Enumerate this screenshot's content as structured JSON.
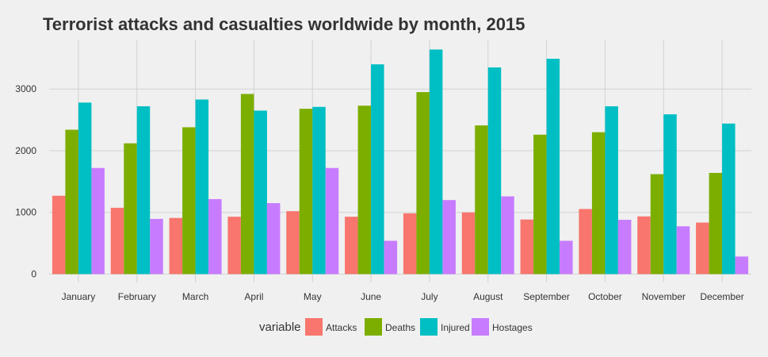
{
  "chart_data": {
    "type": "bar",
    "title": "Terrorist attacks and casualties worldwide by month, 2015",
    "xlabel": "",
    "ylabel": "",
    "categories": [
      "January",
      "February",
      "March",
      "April",
      "May",
      "June",
      "July",
      "August",
      "September",
      "October",
      "November",
      "December"
    ],
    "series": [
      {
        "name": "Attacks",
        "color": "#F8766D",
        "values": [
          1270,
          1075,
          910,
          930,
          1020,
          930,
          985,
          1000,
          885,
          1055,
          935,
          835
        ]
      },
      {
        "name": "Deaths",
        "color": "#7CAE00",
        "values": [
          2340,
          2120,
          2380,
          2920,
          2680,
          2730,
          2950,
          2410,
          2260,
          2300,
          1620,
          1640
        ]
      },
      {
        "name": "Injured",
        "color": "#00BFC4",
        "values": [
          2780,
          2720,
          2830,
          2650,
          2710,
          3400,
          3640,
          3350,
          3490,
          2720,
          2590,
          2440
        ]
      },
      {
        "name": "Hostages",
        "color": "#C77CFF",
        "values": [
          1720,
          895,
          1215,
          1150,
          1720,
          540,
          1200,
          1260,
          540,
          880,
          775,
          285
        ]
      }
    ],
    "ylim": [
      -135,
      3800
    ],
    "yticks": [
      0,
      1000,
      2000,
      3000
    ],
    "ytick_labels": [
      "0",
      "1000",
      "2000",
      "3000"
    ],
    "grid": true,
    "legend": {
      "title": "variable",
      "position": "bottom"
    }
  }
}
